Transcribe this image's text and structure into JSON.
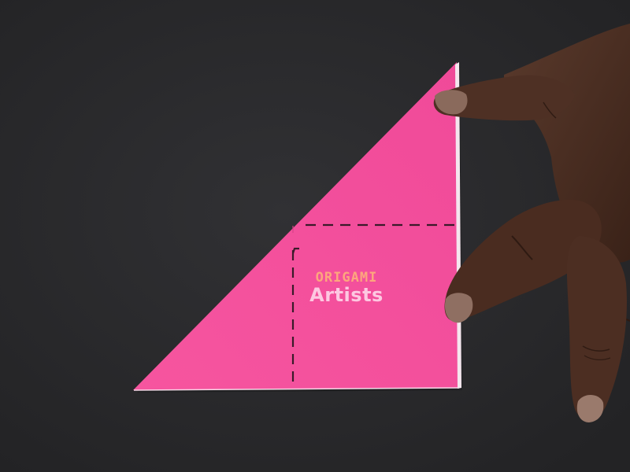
{
  "colors": {
    "background": "#2b2b2d",
    "paper": "#f2519f",
    "paper_shade": "#e5418f",
    "fold_line": "#3a1a2a",
    "skin": "#4a2e22",
    "watermark_orange": "#ffb07a"
  },
  "watermark": {
    "top_line": "",
    "brand_top": "ORIGAMI",
    "brand_bottom": "Artists",
    "bottom_line": ""
  },
  "icons": {
    "paper": "triangle-paper-icon",
    "hand": "hand-icon"
  }
}
